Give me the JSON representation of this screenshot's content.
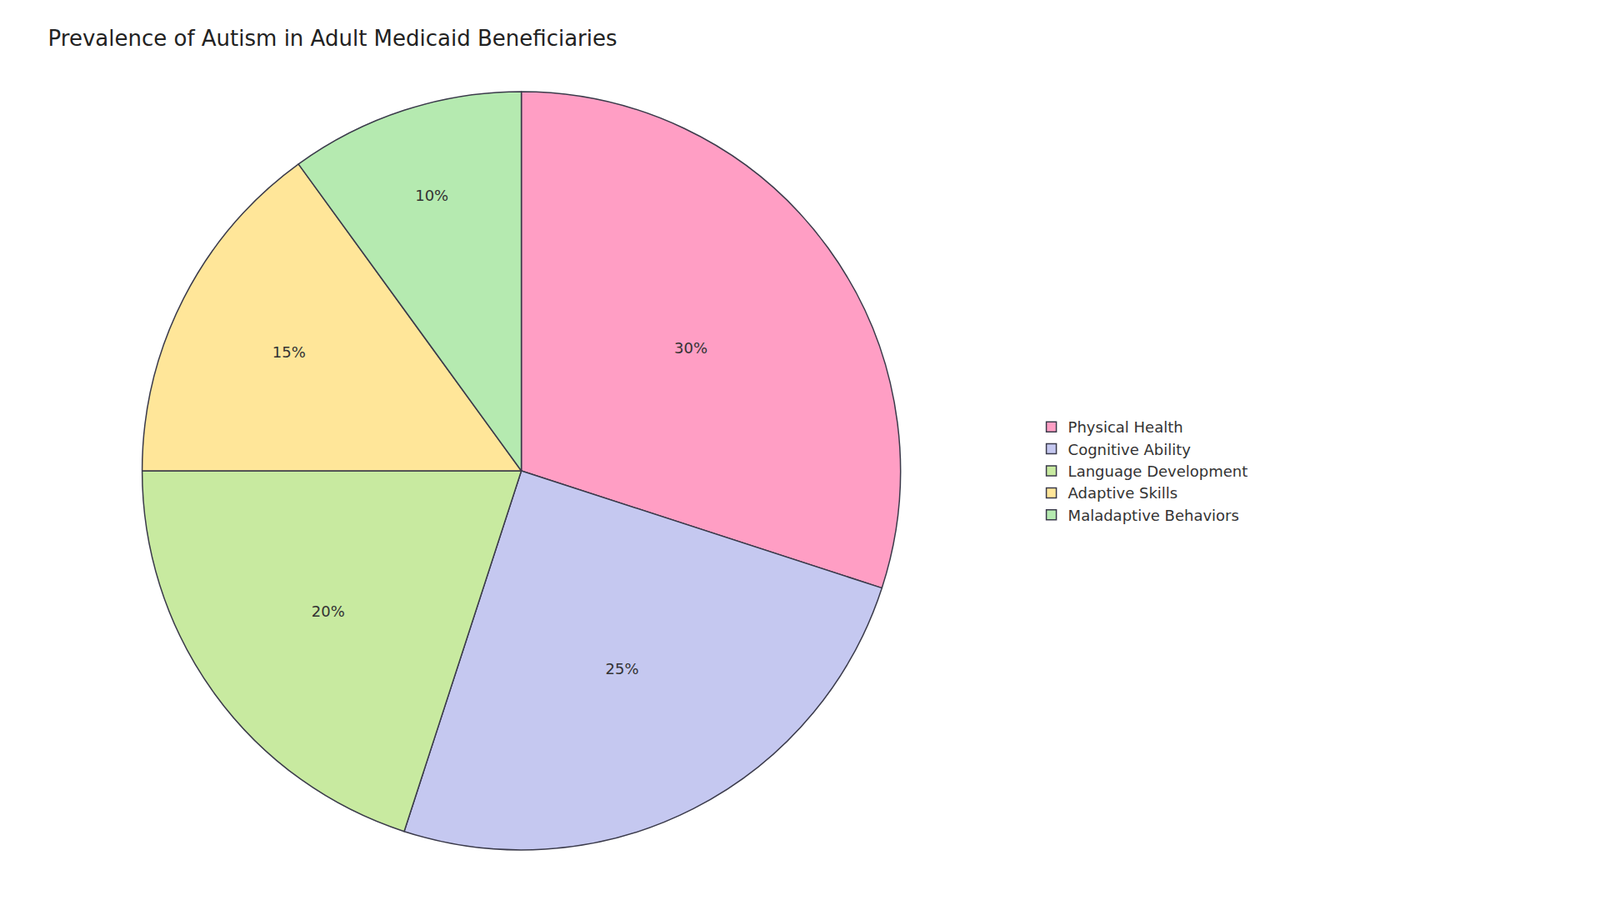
{
  "chart_data": {
    "type": "pie",
    "title": "Prevalence of Autism in Adult Medicaid Beneficiaries",
    "categories": [
      "Physical Health",
      "Cognitive Ability",
      "Language Development",
      "Adaptive Skills",
      "Maladaptive Behaviors"
    ],
    "values": [
      30,
      25,
      20,
      15,
      10
    ],
    "value_labels": [
      "30%",
      "25%",
      "20%",
      "15%",
      "10%"
    ],
    "colors": [
      "#FF9EC4",
      "#C5C8F0",
      "#C8EAA0",
      "#FFE699",
      "#B5EAB0"
    ],
    "data_labels": true,
    "legend": "right"
  }
}
